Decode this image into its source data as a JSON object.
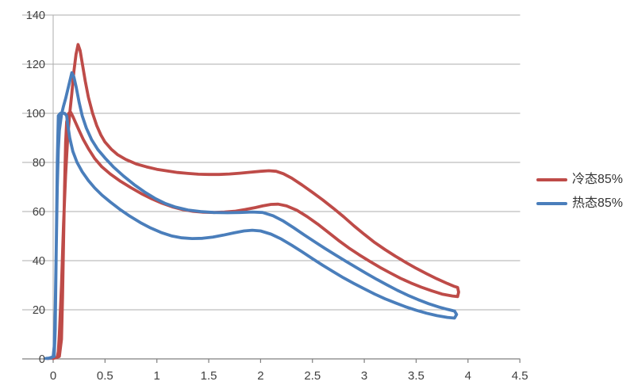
{
  "chart_data": {
    "type": "line",
    "title": "",
    "xlabel": "",
    "ylabel": "",
    "grid": true,
    "legend_position": "right",
    "x_axis": {
      "min": 0,
      "max": 4.5,
      "tick_interval": 0.5,
      "tick_labels": [
        "0",
        "0.5",
        "1",
        "1.5",
        "2",
        "2.5",
        "3",
        "3.5",
        "4",
        "4.5"
      ]
    },
    "y_axis": {
      "min": 0,
      "max": 140,
      "tick_interval": 20,
      "tick_labels": [
        "0",
        "20",
        "40",
        "60",
        "80",
        "100",
        "120",
        "140"
      ]
    },
    "series": [
      {
        "name": "冷态85%",
        "color": "#BE4B48",
        "points": [
          [
            -0.05,
            0.2
          ],
          [
            0.0,
            0.3
          ],
          [
            0.04,
            0.6
          ],
          [
            0.05,
            3
          ],
          [
            0.06,
            10
          ],
          [
            0.08,
            30
          ],
          [
            0.1,
            55
          ],
          [
            0.12,
            75
          ],
          [
            0.14,
            90
          ],
          [
            0.16,
            100
          ],
          [
            0.18,
            108
          ],
          [
            0.2,
            117
          ],
          [
            0.22,
            124
          ],
          [
            0.24,
            128
          ],
          [
            0.26,
            125.5
          ],
          [
            0.28,
            120.5
          ],
          [
            0.31,
            113
          ],
          [
            0.34,
            106.5
          ],
          [
            0.38,
            100
          ],
          [
            0.42,
            95
          ],
          [
            0.46,
            91.2
          ],
          [
            0.5,
            88.3
          ],
          [
            0.56,
            85.4
          ],
          [
            0.62,
            83.2
          ],
          [
            0.7,
            81.2
          ],
          [
            0.8,
            79.4
          ],
          [
            0.9,
            78.2
          ],
          [
            1.0,
            77.2
          ],
          [
            1.1,
            76.5
          ],
          [
            1.2,
            75.9
          ],
          [
            1.3,
            75.5
          ],
          [
            1.4,
            75.2
          ],
          [
            1.5,
            75.1
          ],
          [
            1.6,
            75.1
          ],
          [
            1.7,
            75.3
          ],
          [
            1.8,
            75.6
          ],
          [
            1.9,
            76.0
          ],
          [
            2.0,
            76.4
          ],
          [
            2.08,
            76.6
          ],
          [
            2.15,
            76.4
          ],
          [
            2.22,
            75.4
          ],
          [
            2.3,
            73.6
          ],
          [
            2.4,
            70.8
          ],
          [
            2.5,
            67.8
          ],
          [
            2.6,
            64.7
          ],
          [
            2.7,
            61.4
          ],
          [
            2.8,
            57.9
          ],
          [
            2.9,
            54.2
          ],
          [
            3.0,
            50.7
          ],
          [
            3.1,
            47.4
          ],
          [
            3.2,
            44.5
          ],
          [
            3.3,
            41.8
          ],
          [
            3.4,
            39.3
          ],
          [
            3.5,
            36.9
          ],
          [
            3.6,
            34.7
          ],
          [
            3.7,
            32.6
          ],
          [
            3.8,
            30.7
          ],
          [
            3.87,
            29.5
          ],
          [
            3.9,
            29.1
          ],
          [
            3.91,
            27.2
          ],
          [
            3.9,
            25.4
          ],
          [
            3.85,
            25.6
          ],
          [
            3.75,
            26.4
          ],
          [
            3.65,
            27.7
          ],
          [
            3.55,
            29.2
          ],
          [
            3.45,
            30.9
          ],
          [
            3.35,
            32.8
          ],
          [
            3.25,
            35.0
          ],
          [
            3.15,
            37.3
          ],
          [
            3.05,
            39.8
          ],
          [
            2.95,
            42.4
          ],
          [
            2.85,
            45.2
          ],
          [
            2.75,
            48.3
          ],
          [
            2.65,
            51.6
          ],
          [
            2.55,
            54.9
          ],
          [
            2.45,
            57.9
          ],
          [
            2.35,
            60.5
          ],
          [
            2.25,
            62.3
          ],
          [
            2.17,
            63.0
          ],
          [
            2.1,
            62.9
          ],
          [
            2.02,
            62.3
          ],
          [
            1.95,
            61.6
          ],
          [
            1.85,
            60.8
          ],
          [
            1.75,
            60.1
          ],
          [
            1.65,
            59.8
          ],
          [
            1.55,
            59.6
          ],
          [
            1.45,
            59.7
          ],
          [
            1.35,
            60.1
          ],
          [
            1.25,
            60.8
          ],
          [
            1.15,
            61.9
          ],
          [
            1.05,
            63.4
          ],
          [
            0.95,
            65.2
          ],
          [
            0.85,
            67.3
          ],
          [
            0.75,
            69.7
          ],
          [
            0.65,
            72.3
          ],
          [
            0.55,
            75.3
          ],
          [
            0.47,
            78.2
          ],
          [
            0.4,
            81.6
          ],
          [
            0.34,
            85.6
          ],
          [
            0.29,
            89.4
          ],
          [
            0.25,
            93.0
          ],
          [
            0.22,
            95.8
          ],
          [
            0.19,
            98.7
          ],
          [
            0.17,
            100.4
          ],
          [
            0.15,
            100.0
          ],
          [
            0.13,
            96.5
          ],
          [
            0.12,
            88.0
          ],
          [
            0.11,
            70.0
          ],
          [
            0.1,
            48.0
          ],
          [
            0.09,
            25.0
          ],
          [
            0.08,
            8.0
          ],
          [
            0.06,
            1.0
          ],
          [
            0.0,
            0.2
          ]
        ]
      },
      {
        "name": "热态85%",
        "color": "#4A7EBB",
        "points": [
          [
            -0.07,
            0.2
          ],
          [
            -0.02,
            0.4
          ],
          [
            0.0,
            1
          ],
          [
            0.01,
            5
          ],
          [
            0.02,
            20
          ],
          [
            0.03,
            45
          ],
          [
            0.04,
            70
          ],
          [
            0.05,
            85
          ],
          [
            0.06,
            93
          ],
          [
            0.08,
            99.5
          ],
          [
            0.1,
            103
          ],
          [
            0.12,
            106
          ],
          [
            0.14,
            109.5
          ],
          [
            0.16,
            113
          ],
          [
            0.18,
            116.5
          ],
          [
            0.2,
            114.8
          ],
          [
            0.22,
            111
          ],
          [
            0.25,
            104.5
          ],
          [
            0.28,
            99
          ],
          [
            0.32,
            94
          ],
          [
            0.37,
            89.3
          ],
          [
            0.43,
            85.3
          ],
          [
            0.5,
            81.8
          ],
          [
            0.58,
            78.2
          ],
          [
            0.68,
            74.4
          ],
          [
            0.78,
            71.0
          ],
          [
            0.88,
            68.0
          ],
          [
            0.98,
            65.4
          ],
          [
            1.08,
            63.3
          ],
          [
            1.18,
            61.8
          ],
          [
            1.3,
            60.6
          ],
          [
            1.42,
            60.0
          ],
          [
            1.55,
            59.6
          ],
          [
            1.68,
            59.5
          ],
          [
            1.8,
            59.6
          ],
          [
            1.92,
            59.8
          ],
          [
            2.02,
            59.6
          ],
          [
            2.12,
            58.3
          ],
          [
            2.22,
            56.1
          ],
          [
            2.32,
            53.4
          ],
          [
            2.42,
            50.5
          ],
          [
            2.52,
            47.7
          ],
          [
            2.62,
            45.0
          ],
          [
            2.72,
            42.4
          ],
          [
            2.82,
            39.8
          ],
          [
            2.92,
            37.3
          ],
          [
            3.02,
            34.8
          ],
          [
            3.12,
            32.4
          ],
          [
            3.22,
            30.1
          ],
          [
            3.32,
            27.9
          ],
          [
            3.42,
            25.9
          ],
          [
            3.52,
            24.1
          ],
          [
            3.62,
            22.5
          ],
          [
            3.72,
            21.1
          ],
          [
            3.8,
            20.2
          ],
          [
            3.87,
            19.5
          ],
          [
            3.89,
            18.1
          ],
          [
            3.87,
            16.6
          ],
          [
            3.8,
            16.9
          ],
          [
            3.7,
            17.6
          ],
          [
            3.6,
            18.6
          ],
          [
            3.5,
            19.8
          ],
          [
            3.4,
            21.2
          ],
          [
            3.3,
            22.8
          ],
          [
            3.2,
            24.5
          ],
          [
            3.1,
            26.4
          ],
          [
            3.0,
            28.5
          ],
          [
            2.9,
            30.7
          ],
          [
            2.8,
            33.0
          ],
          [
            2.7,
            35.5
          ],
          [
            2.6,
            38.1
          ],
          [
            2.5,
            40.8
          ],
          [
            2.4,
            43.6
          ],
          [
            2.3,
            46.3
          ],
          [
            2.2,
            48.8
          ],
          [
            2.1,
            50.8
          ],
          [
            2.0,
            52.1
          ],
          [
            1.92,
            52.4
          ],
          [
            1.84,
            52.1
          ],
          [
            1.74,
            51.3
          ],
          [
            1.64,
            50.4
          ],
          [
            1.54,
            49.6
          ],
          [
            1.44,
            49.1
          ],
          [
            1.34,
            49.0
          ],
          [
            1.24,
            49.3
          ],
          [
            1.14,
            50.1
          ],
          [
            1.04,
            51.5
          ],
          [
            0.94,
            53.3
          ],
          [
            0.84,
            55.5
          ],
          [
            0.74,
            58.1
          ],
          [
            0.64,
            61.0
          ],
          [
            0.55,
            63.9
          ],
          [
            0.47,
            66.7
          ],
          [
            0.4,
            69.6
          ],
          [
            0.34,
            72.6
          ],
          [
            0.28,
            76.2
          ],
          [
            0.23,
            80.0
          ],
          [
            0.19,
            84.5
          ],
          [
            0.16,
            90.0
          ],
          [
            0.14,
            95.5
          ],
          [
            0.13,
            99.0
          ],
          [
            0.11,
            100.0
          ],
          [
            0.09,
            100.0
          ],
          [
            0.07,
            100.0
          ],
          [
            0.05,
            99.0
          ],
          [
            0.04,
            80.0
          ],
          [
            0.03,
            45.0
          ],
          [
            0.02,
            12.0
          ],
          [
            0.01,
            1.0
          ],
          [
            -0.05,
            0.2
          ]
        ]
      }
    ]
  },
  "colors": {
    "background": "#FFFFFF",
    "gridline": "#ACACAC",
    "axis": "#7F7F7F",
    "tick_label": "#404040",
    "legend_text": "#333333"
  }
}
